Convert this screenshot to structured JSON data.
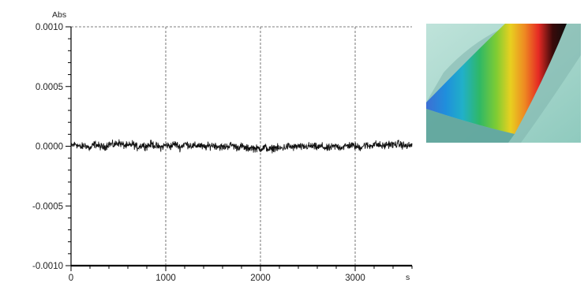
{
  "chart_data": {
    "type": "line",
    "title": "",
    "xlabel": "",
    "ylabel": "",
    "y_unit": "Abs",
    "x_unit": "s",
    "xlim": [
      0,
      3600
    ],
    "ylim": [
      -0.001,
      0.001
    ],
    "x_ticks": [
      0,
      1000,
      2000,
      3000
    ],
    "x_tick_labels": [
      "0",
      "1000",
      "2000",
      "3000"
    ],
    "y_ticks": [
      0.001,
      0.0005,
      0.0,
      -0.0005,
      -0.001
    ],
    "y_tick_labels": [
      "0.0010",
      "0.0005",
      "0.0000",
      "-0.0005",
      "-0.0010"
    ],
    "grid": true,
    "legend": "none",
    "series": [
      {
        "color": "#111111",
        "x": [
          0,
          50,
          100,
          150,
          200,
          250,
          300,
          350,
          400,
          450,
          500,
          550,
          600,
          650,
          700,
          750,
          800,
          850,
          900,
          950,
          1000,
          1050,
          1100,
          1150,
          1200,
          1250,
          1300,
          1350,
          1400,
          1450,
          1500,
          1550,
          1600,
          1650,
          1700,
          1750,
          1800,
          1850,
          1900,
          1950,
          2000,
          2050,
          2100,
          2150,
          2200,
          2250,
          2300,
          2350,
          2400,
          2450,
          2500,
          2550,
          2600,
          2650,
          2700,
          2750,
          2800,
          2850,
          2900,
          2950,
          3000,
          3050,
          3100,
          3150,
          3200,
          3250,
          3300,
          3350,
          3400,
          3450,
          3500,
          3550,
          3600
        ],
        "values": [
          0.0,
          2e-05,
          -1e-05,
          1e-05,
          -2e-05,
          2e-05,
          0.0,
          -1e-05,
          2e-05,
          1e-05,
          3e-05,
          1e-05,
          0.0,
          2e-05,
          -1e-05,
          1e-05,
          0.0,
          2e-05,
          0.0,
          -1e-05,
          1e-05,
          0.0,
          2e-05,
          -1e-05,
          2e-05,
          1e-05,
          0.0,
          1e-05,
          -1e-05,
          0.0,
          1e-05,
          0.0,
          -1e-05,
          0.0,
          1e-05,
          -1e-05,
          0.0,
          -2e-05,
          -1e-05,
          -2e-05,
          -2e-05,
          -1e-05,
          -3e-05,
          -1e-05,
          -2e-05,
          -1e-05,
          0.0,
          -1e-05,
          0.0,
          -1e-05,
          0.0,
          0.0,
          -1e-05,
          0.0,
          -2e-05,
          -1e-05,
          0.0,
          -1e-05,
          0.0,
          1e-05,
          0.0,
          -1e-05,
          1e-05,
          0.0,
          2e-05,
          1e-05,
          0.0,
          2e-05,
          1e-05,
          2e-05,
          1e-05,
          0.0,
          1e-05
        ],
        "noise_amplitude": 3e-05
      }
    ]
  },
  "photo": {
    "description_icon": "rainbow-spectrum-plate",
    "colors": {
      "background": "#a9d6cc",
      "bands": [
        "#3d6fd4",
        "#1fa3d9",
        "#2fb866",
        "#7fcc33",
        "#e8d020",
        "#ee8a22",
        "#e52a24",
        "#0e0e0e"
      ]
    }
  }
}
